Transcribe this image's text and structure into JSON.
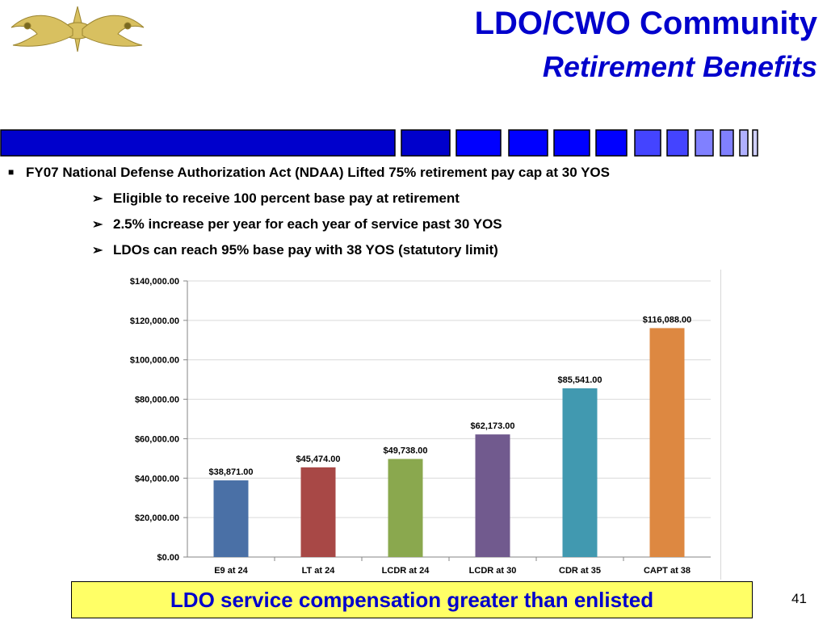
{
  "slide": {
    "title": "LDO/CWO Community",
    "subtitle": "Retirement Benefits",
    "page_number": "41"
  },
  "bullets": {
    "main": "FY07 National Defense Authorization Act (NDAA) Lifted 75% retirement pay cap at 30 YOS",
    "subs": [
      "Eligible to receive 100 percent base pay at retirement",
      "2.5% increase per year for each year of service past 30 YOS",
      "LDOs can reach 95% base pay with 38 YOS (statutory limit)"
    ]
  },
  "callout": {
    "text": "LDO service compensation greater than enlisted"
  },
  "colors": {
    "title": "#0000cc",
    "strip_dark": "#0000cc",
    "strip_mid": "#0000ff",
    "strip_light": "#4444ff",
    "callout_bg": "#ffff66"
  },
  "chart_data": {
    "type": "bar",
    "categories": [
      "E9 at 24",
      "LT at 24",
      "LCDR at 24",
      "LCDR at 30",
      "CDR at 35",
      "CAPT at 38"
    ],
    "values": [
      38871.0,
      45474.0,
      49738.0,
      62173.0,
      85541.0,
      116088.0
    ],
    "data_labels": [
      "$38,871.00",
      "$45,474.00",
      "$49,738.00",
      "$62,173.00",
      "$85,541.00",
      "$116,088.00"
    ],
    "colors": [
      "#4a70a6",
      "#a84846",
      "#8aa84e",
      "#715a8e",
      "#4199b0",
      "#dd8841"
    ],
    "yticks": [
      "$0.00",
      "$20,000.00",
      "$40,000.00",
      "$60,000.00",
      "$80,000.00",
      "$100,000.00",
      "$120,000.00",
      "$140,000.00"
    ],
    "ylim": [
      0,
      140000
    ],
    "grid": true,
    "title": "",
    "xlabel": "",
    "ylabel": ""
  }
}
